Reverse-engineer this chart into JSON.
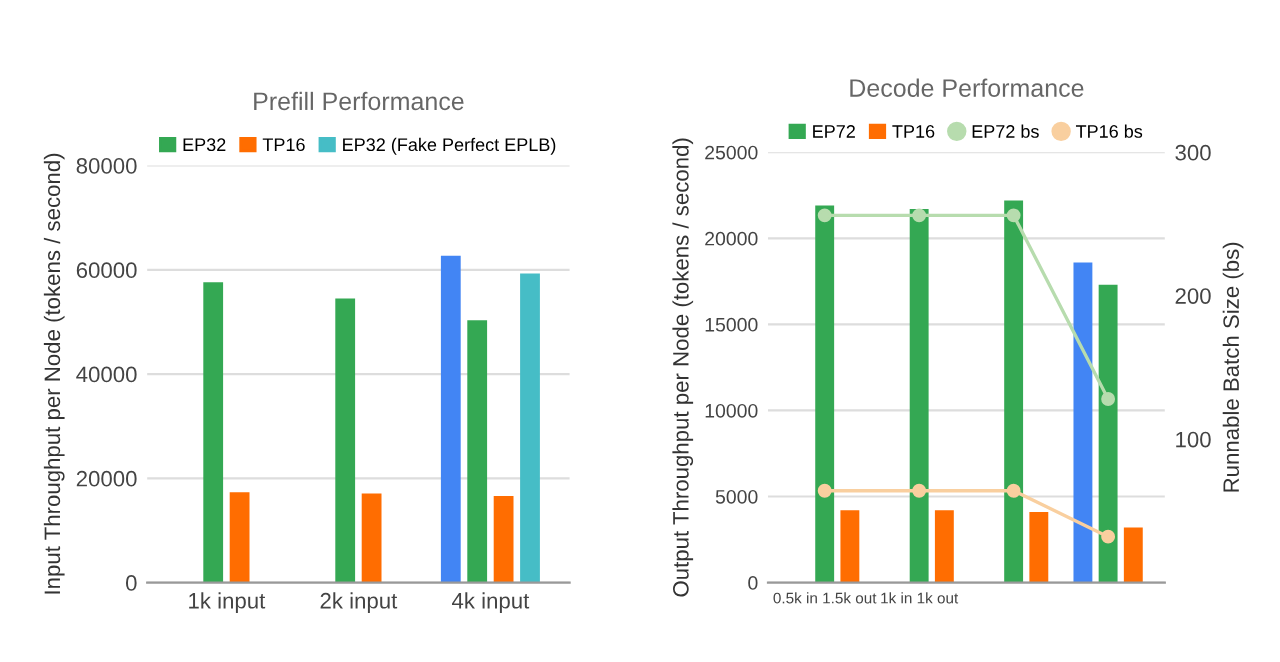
{
  "chart_data": [
    {
      "type": "bar",
      "title": "Prefill Performance",
      "ylabel": "Input Throughput per Node (tokens / second)",
      "categories": [
        "1k input",
        "2k input",
        "4k input"
      ],
      "series": [
        {
          "color": "#4285f4",
          "values": [
            null,
            null,
            62700
          ]
        },
        {
          "name": "EP32",
          "color": "#34a853",
          "values": [
            57600,
            54500,
            50300
          ]
        },
        {
          "name": "TP16",
          "color": "#ff6d01",
          "values": [
            17300,
            17100,
            16600
          ]
        },
        {
          "name": "EP32 (Fake Perfect EPLB)",
          "color": "#46bdc6",
          "values": [
            null,
            null,
            59300
          ]
        }
      ],
      "ylim": [
        0,
        80000
      ],
      "yticks": [
        0,
        20000,
        40000,
        60000,
        80000
      ],
      "grid": "y",
      "legend": "top"
    },
    {
      "type": "bar",
      "title": "Decode Performance",
      "ylabel": "Output Throughput per Node (tokens / second)",
      "y2label": "Runnable Batch Size (bs)",
      "categories": [
        "0.5k in 1.5k out",
        "1k in 1k out",
        null,
        null
      ],
      "series": [
        {
          "color": "#4285f4",
          "values": [
            null,
            null,
            null,
            18600
          ]
        },
        {
          "name": "EP72",
          "color": "#34a853",
          "values": [
            21900,
            21700,
            22200,
            17300
          ]
        },
        {
          "name": "TP16",
          "color": "#ff6d01",
          "values": [
            4200,
            4200,
            4100,
            3200
          ]
        },
        {
          "name": "EP72 bs",
          "type": "line",
          "axis": "y2",
          "marker": "circle",
          "color": "#b7dcae",
          "values": [
            256,
            256,
            256,
            128
          ]
        },
        {
          "name": "TP16 bs",
          "type": "line",
          "axis": "y2",
          "marker": "circle",
          "color": "#f9cf9f",
          "values": [
            64,
            64,
            64,
            32
          ]
        }
      ],
      "ylim": [
        0,
        25000
      ],
      "yticks": [
        0,
        5000,
        10000,
        15000,
        20000,
        25000
      ],
      "y2lim": [
        0,
        300
      ],
      "y2ticks": [
        {
          "value": 0,
          "label": null
        },
        100,
        200,
        300
      ],
      "grid": "y",
      "legend": "top"
    }
  ]
}
